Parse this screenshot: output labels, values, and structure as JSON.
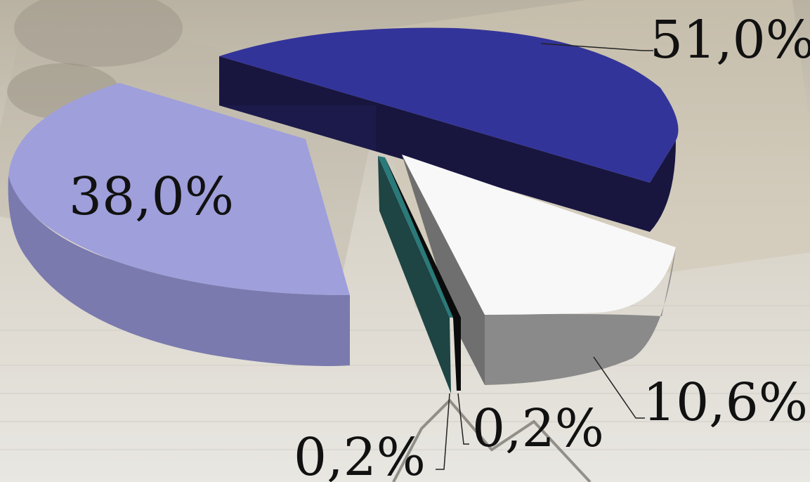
{
  "chart_data": {
    "type": "pie",
    "three_d": true,
    "exploded": true,
    "slices": [
      {
        "label": "51,0%",
        "value": 51.0,
        "color": "#33349a"
      },
      {
        "label": "10,6%",
        "value": 10.6,
        "color": "#f8f8f8"
      },
      {
        "label": "0,2%",
        "value": 0.2,
        "color": "#0b0b0b"
      },
      {
        "label": "0,2%",
        "value": 0.2,
        "color": "#1f4a4a"
      },
      {
        "label": "38,0%",
        "value": 38.0,
        "color": "#9f9fdc"
      }
    ]
  },
  "background": {
    "description_icon": "money-background"
  }
}
